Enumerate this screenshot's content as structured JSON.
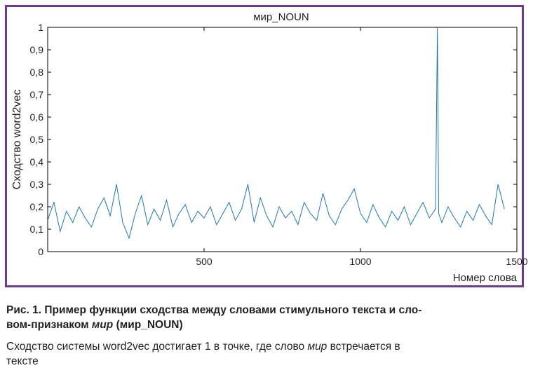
{
  "chart_data": {
    "type": "line",
    "title": "мир_NOUN",
    "xlabel": "Номер слова",
    "ylabel": "Сходство word2vec",
    "xlim": [
      0,
      1500
    ],
    "ylim": [
      0,
      1
    ],
    "xticks": [
      500,
      1000,
      1500
    ],
    "yticks": [
      0,
      0.1,
      0.2,
      0.3,
      0.4,
      0.5,
      0.6,
      0.7,
      0.8,
      0.9,
      1
    ],
    "ytick_labels": [
      "0",
      "0,1",
      "0,2",
      "0,3",
      "0,4",
      "0,5",
      "0,6",
      "0,7",
      "0,8",
      "0,9",
      "1"
    ],
    "grid": false,
    "line_color": "#1f77b4",
    "series": [
      {
        "x": [
          0,
          20,
          40,
          60,
          80,
          100,
          120,
          140,
          160,
          180,
          200,
          220,
          240,
          260,
          280,
          300,
          320,
          340,
          360,
          380,
          400,
          420,
          440,
          460,
          480,
          500,
          520,
          540,
          560,
          580,
          600,
          620,
          640,
          660,
          680,
          700,
          720,
          740,
          760,
          780,
          800,
          820,
          840,
          860,
          880,
          900,
          920,
          940,
          960,
          980,
          1000,
          1020,
          1040,
          1060,
          1080,
          1100,
          1120,
          1140,
          1160,
          1180,
          1200,
          1220,
          1240,
          1246,
          1250,
          1260,
          1280,
          1300,
          1320,
          1340,
          1360,
          1380,
          1400,
          1420,
          1440,
          1460
        ],
        "y": [
          0.14,
          0.22,
          0.09,
          0.18,
          0.13,
          0.2,
          0.15,
          0.11,
          0.19,
          0.24,
          0.16,
          0.3,
          0.13,
          0.06,
          0.17,
          0.25,
          0.12,
          0.19,
          0.14,
          0.23,
          0.11,
          0.17,
          0.21,
          0.13,
          0.18,
          0.15,
          0.2,
          0.12,
          0.17,
          0.22,
          0.14,
          0.19,
          0.3,
          0.13,
          0.24,
          0.16,
          0.11,
          0.2,
          0.15,
          0.18,
          0.12,
          0.22,
          0.17,
          0.14,
          0.26,
          0.16,
          0.12,
          0.19,
          0.23,
          0.28,
          0.17,
          0.13,
          0.21,
          0.15,
          0.11,
          0.18,
          0.14,
          0.2,
          0.12,
          0.17,
          0.22,
          0.15,
          0.19,
          1.0,
          0.17,
          0.13,
          0.2,
          0.15,
          0.11,
          0.18,
          0.14,
          0.21,
          0.16,
          0.12,
          0.3,
          0.19
        ]
      }
    ]
  },
  "caption": {
    "title_line1": "Рис. 1. Пример функции сходства между словами стимульного текста и сло-",
    "title_line2_start": "вом-признаком ",
    "title_line2_italic": "мир",
    "title_line2_end": " (мир_NOUN)",
    "body_line1_start": "Сходство системы word2vec достигает 1 в точке, где слово ",
    "body_line1_italic": "мир",
    "body_line1_end": " встречается в",
    "body_line2": "тексте"
  }
}
